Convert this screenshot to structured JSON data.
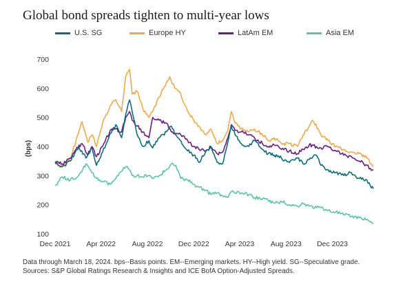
{
  "title": "Global bond spreads tighten to multi-year lows",
  "footnotes": [
    "Data through March 18, 2024. bps--Basis points. EM--Emerging markets. HY--High yield. SG--Speculative grade.",
    "Sources: S&P Global Ratings Research & Insights and ICE BofA Option-Adjusted Spreads."
  ],
  "colors": {
    "us_sg": "#0b6d77",
    "europe_hy": "#f0a849",
    "latam_em": "#6a1b85",
    "asia_em": "#5cc3a8"
  },
  "chart_data": {
    "type": "line",
    "title": "Global bond spreads tighten to multi-year lows",
    "xlabel": "",
    "ylabel": "(bps)",
    "ylim": [
      100,
      700
    ],
    "yticks": [
      "100",
      "200",
      "300",
      "400",
      "500",
      "600",
      "700"
    ],
    "xlim": [
      "2021-12-01",
      "2024-03-18"
    ],
    "xticks": [
      "Dec 2021",
      "Apr 2022",
      "Aug 2022",
      "Dec 2022",
      "Apr 2023",
      "Aug 2023",
      "Dec 2023"
    ],
    "grid": false,
    "legend_position": "top",
    "series": [
      {
        "name": "U.S. SG",
        "color": "#0b6d77",
        "x": [
          "2021-12-01",
          "2021-12-20",
          "2022-01-10",
          "2022-02-01",
          "2022-02-20",
          "2022-03-08",
          "2022-03-20",
          "2022-04-05",
          "2022-04-25",
          "2022-05-10",
          "2022-05-25",
          "2022-06-05",
          "2022-06-15",
          "2022-06-22",
          "2022-07-05",
          "2022-07-20",
          "2022-08-05",
          "2022-08-15",
          "2022-09-01",
          "2022-09-20",
          "2022-10-03",
          "2022-10-15",
          "2022-10-28",
          "2022-11-15",
          "2022-12-01",
          "2022-12-15",
          "2023-01-01",
          "2023-01-15",
          "2023-02-01",
          "2023-02-15",
          "2023-03-01",
          "2023-03-10",
          "2023-03-20",
          "2023-04-05",
          "2023-04-25",
          "2023-05-10",
          "2023-05-31",
          "2023-06-15",
          "2023-07-01",
          "2023-07-20",
          "2023-08-10",
          "2023-08-31",
          "2023-09-15",
          "2023-10-01",
          "2023-10-20",
          "2023-11-01",
          "2023-11-20",
          "2023-12-10",
          "2023-12-31",
          "2024-01-20",
          "2024-02-10",
          "2024-03-01",
          "2024-03-10",
          "2024-03-18"
        ],
        "y": [
          345,
          330,
          350,
          400,
          360,
          395,
          335,
          380,
          445,
          475,
          430,
          510,
          560,
          520,
          440,
          400,
          420,
          395,
          430,
          450,
          470,
          440,
          420,
          385,
          370,
          345,
          380,
          400,
          345,
          340,
          415,
          470,
          440,
          410,
          400,
          420,
          390,
          375,
          370,
          360,
          345,
          360,
          340,
          355,
          370,
          335,
          320,
          310,
          300,
          310,
          290,
          285,
          265,
          255
        ]
      },
      {
        "name": "Europe HY",
        "color": "#f0a849",
        "x": [
          "2021-12-01",
          "2021-12-20",
          "2022-01-10",
          "2022-01-25",
          "2022-02-10",
          "2022-02-25",
          "2022-03-08",
          "2022-03-20",
          "2022-04-05",
          "2022-04-25",
          "2022-05-10",
          "2022-05-25",
          "2022-06-05",
          "2022-06-15",
          "2022-06-22",
          "2022-07-05",
          "2022-07-20",
          "2022-08-05",
          "2022-08-15",
          "2022-09-01",
          "2022-09-20",
          "2022-09-29",
          "2022-10-12",
          "2022-10-28",
          "2022-11-15",
          "2022-12-01",
          "2022-12-15",
          "2023-01-01",
          "2023-01-15",
          "2023-02-01",
          "2023-02-15",
          "2023-03-01",
          "2023-03-10",
          "2023-03-20",
          "2023-04-05",
          "2023-04-25",
          "2023-05-10",
          "2023-05-31",
          "2023-06-15",
          "2023-07-01",
          "2023-07-20",
          "2023-08-10",
          "2023-08-31",
          "2023-09-15",
          "2023-10-01",
          "2023-10-10",
          "2023-10-25",
          "2023-11-01",
          "2023-11-20",
          "2023-12-10",
          "2023-12-31",
          "2024-01-20",
          "2024-02-10",
          "2024-03-01",
          "2024-03-10",
          "2024-03-18"
        ],
        "y": [
          345,
          330,
          360,
          420,
          485,
          415,
          440,
          400,
          480,
          540,
          560,
          520,
          640,
          665,
          580,
          590,
          530,
          500,
          520,
          570,
          620,
          640,
          600,
          580,
          520,
          490,
          470,
          440,
          460,
          410,
          420,
          455,
          520,
          480,
          460,
          450,
          460,
          440,
          420,
          430,
          410,
          410,
          400,
          440,
          470,
          490,
          460,
          440,
          420,
          400,
          390,
          380,
          375,
          360,
          340,
          330
        ]
      },
      {
        "name": "LatAm EM",
        "color": "#6a1b85",
        "x": [
          "2021-12-01",
          "2021-12-20",
          "2022-01-10",
          "2022-01-25",
          "2022-02-10",
          "2022-02-25",
          "2022-03-08",
          "2022-03-20",
          "2022-04-05",
          "2022-04-25",
          "2022-05-10",
          "2022-05-25",
          "2022-06-05",
          "2022-06-15",
          "2022-06-22",
          "2022-07-05",
          "2022-07-20",
          "2022-08-05",
          "2022-08-15",
          "2022-09-01",
          "2022-09-20",
          "2022-10-03",
          "2022-10-15",
          "2022-10-28",
          "2022-11-15",
          "2022-12-01",
          "2022-12-15",
          "2023-01-01",
          "2023-01-15",
          "2023-02-01",
          "2023-02-15",
          "2023-03-01",
          "2023-03-10",
          "2023-03-20",
          "2023-04-05",
          "2023-04-25",
          "2023-05-10",
          "2023-05-31",
          "2023-06-15",
          "2023-07-01",
          "2023-07-20",
          "2023-08-10",
          "2023-08-31",
          "2023-09-15",
          "2023-10-01",
          "2023-10-20",
          "2023-11-01",
          "2023-11-20",
          "2023-12-10",
          "2023-12-31",
          "2024-01-20",
          "2024-02-10",
          "2024-03-01",
          "2024-03-10",
          "2024-03-18"
        ],
        "y": [
          345,
          340,
          360,
          390,
          410,
          370,
          400,
          365,
          400,
          455,
          460,
          450,
          500,
          520,
          490,
          470,
          450,
          430,
          500,
          490,
          480,
          450,
          445,
          440,
          420,
          400,
          390,
          385,
          400,
          375,
          380,
          430,
          475,
          455,
          450,
          440,
          430,
          410,
          400,
          405,
          390,
          385,
          375,
          390,
          405,
          400,
          395,
          400,
          385,
          370,
          365,
          350,
          335,
          325,
          320
        ]
      },
      {
        "name": "Asia EM",
        "color": "#5cc3a8",
        "x": [
          "2021-12-01",
          "2021-12-20",
          "2022-01-10",
          "2022-02-01",
          "2022-02-20",
          "2022-03-08",
          "2022-03-20",
          "2022-04-05",
          "2022-04-25",
          "2022-05-10",
          "2022-05-25",
          "2022-06-05",
          "2022-06-15",
          "2022-06-22",
          "2022-07-05",
          "2022-07-20",
          "2022-08-05",
          "2022-08-15",
          "2022-09-01",
          "2022-09-20",
          "2022-10-03",
          "2022-10-15",
          "2022-10-28",
          "2022-11-15",
          "2022-12-01",
          "2022-12-15",
          "2023-01-01",
          "2023-01-15",
          "2023-02-01",
          "2023-02-15",
          "2023-03-01",
          "2023-03-10",
          "2023-03-20",
          "2023-04-05",
          "2023-04-25",
          "2023-05-10",
          "2023-05-31",
          "2023-06-15",
          "2023-07-01",
          "2023-07-20",
          "2023-08-10",
          "2023-08-31",
          "2023-09-15",
          "2023-10-01",
          "2023-10-20",
          "2023-11-01",
          "2023-11-20",
          "2023-12-10",
          "2023-12-31",
          "2024-01-20",
          "2024-02-10",
          "2024-03-01",
          "2024-03-10",
          "2024-03-18"
        ],
        "y": [
          265,
          295,
          285,
          300,
          340,
          310,
          290,
          280,
          270,
          290,
          315,
          330,
          320,
          300,
          300,
          295,
          300,
          290,
          300,
          320,
          340,
          335,
          290,
          285,
          270,
          260,
          250,
          235,
          240,
          230,
          225,
          245,
          240,
          240,
          235,
          225,
          220,
          215,
          205,
          210,
          200,
          195,
          205,
          195,
          190,
          190,
          180,
          175,
          165,
          160,
          155,
          150,
          140,
          135
        ]
      }
    ]
  }
}
